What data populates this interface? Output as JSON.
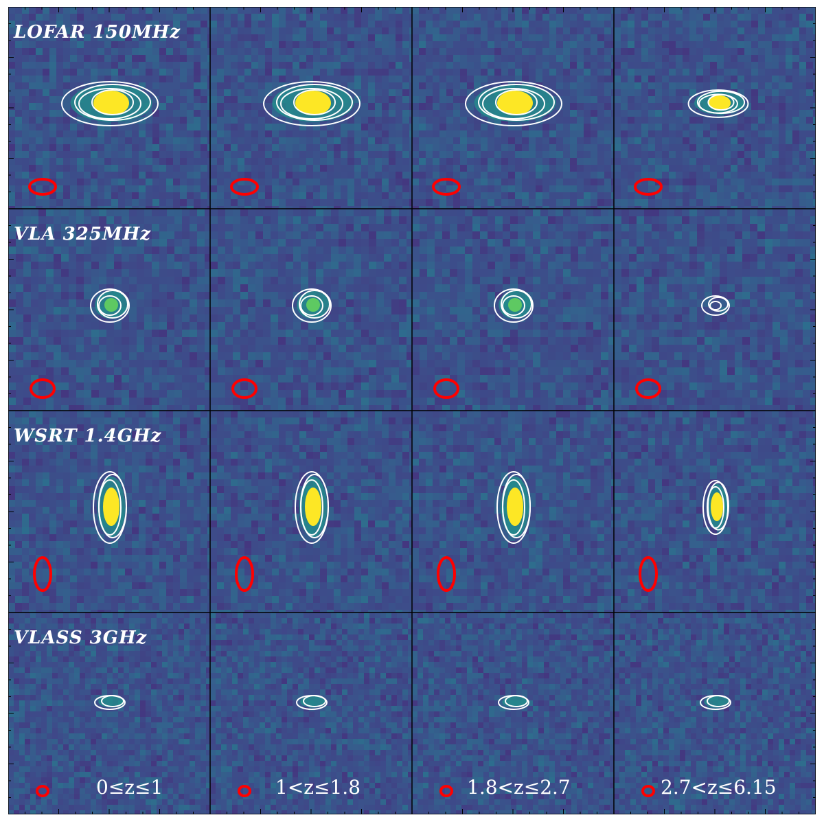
{
  "rows": [
    {
      "survey": "LOFAR 150MHz",
      "beam": {
        "rx": 19,
        "ry": 11
      },
      "source": "lofar"
    },
    {
      "survey": "VLA 325MHz",
      "beam": {
        "rx": 17,
        "ry": 13
      },
      "source": "vla"
    },
    {
      "survey": "WSRT 1.4GHz",
      "beam": {
        "rx": 12,
        "ry": 24
      },
      "source": "wsrt"
    },
    {
      "survey": "VLASS 3GHz",
      "beam": {
        "rx": 8,
        "ry": 7
      },
      "source": "vlass"
    }
  ],
  "columns": [
    {
      "z_range": "0≤z≤1"
    },
    {
      "z_range": "1<z≤1.8"
    },
    {
      "z_range": "1.8<z≤2.7"
    },
    {
      "z_range": "2.7<z≤6.15"
    }
  ],
  "colors": {
    "background": "#3b528b",
    "mid": "#21918c",
    "peak": "#fde725",
    "contour": "#ffffff",
    "beam": "#ff0000",
    "frame": "#000000"
  }
}
